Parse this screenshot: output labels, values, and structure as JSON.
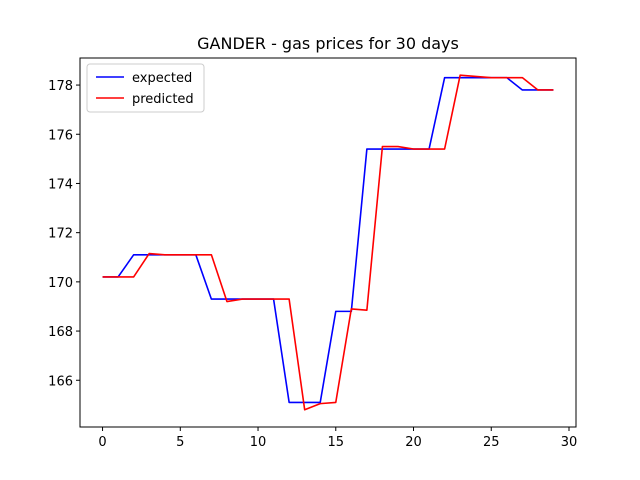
{
  "chart_data": {
    "type": "line",
    "title": "GANDER - gas prices for 30 days",
    "xlabel": "",
    "ylabel": "",
    "xlim": [
      -1.45,
      30.45
    ],
    "ylim": [
      164.1,
      179.1
    ],
    "xticks": [
      0,
      5,
      10,
      15,
      20,
      25,
      30
    ],
    "yticks": [
      166,
      168,
      170,
      172,
      174,
      176,
      178
    ],
    "grid": false,
    "legend_position": "top-left",
    "x": [
      0,
      1,
      2,
      3,
      4,
      5,
      6,
      7,
      8,
      9,
      10,
      11,
      12,
      13,
      14,
      15,
      16,
      17,
      18,
      19,
      20,
      21,
      22,
      23,
      24,
      25,
      26,
      27,
      28,
      29
    ],
    "series": [
      {
        "name": "expected",
        "color": "#0000ff",
        "values": [
          170.2,
          170.2,
          171.1,
          171.1,
          171.1,
          171.1,
          171.1,
          169.3,
          169.3,
          169.3,
          169.3,
          169.3,
          165.1,
          165.1,
          165.1,
          168.8,
          168.8,
          175.4,
          175.4,
          175.4,
          175.4,
          175.4,
          178.3,
          178.3,
          178.3,
          178.3,
          178.3,
          177.8,
          177.8,
          177.8
        ]
      },
      {
        "name": "predicted",
        "color": "#ff0000",
        "values": [
          170.2,
          170.2,
          170.2,
          171.15,
          171.1,
          171.1,
          171.1,
          171.1,
          169.2,
          169.3,
          169.3,
          169.3,
          169.3,
          164.8,
          165.05,
          165.1,
          168.9,
          168.85,
          175.5,
          175.5,
          175.4,
          175.4,
          175.4,
          178.4,
          178.35,
          178.3,
          178.3,
          178.3,
          177.8,
          177.8
        ]
      }
    ]
  }
}
